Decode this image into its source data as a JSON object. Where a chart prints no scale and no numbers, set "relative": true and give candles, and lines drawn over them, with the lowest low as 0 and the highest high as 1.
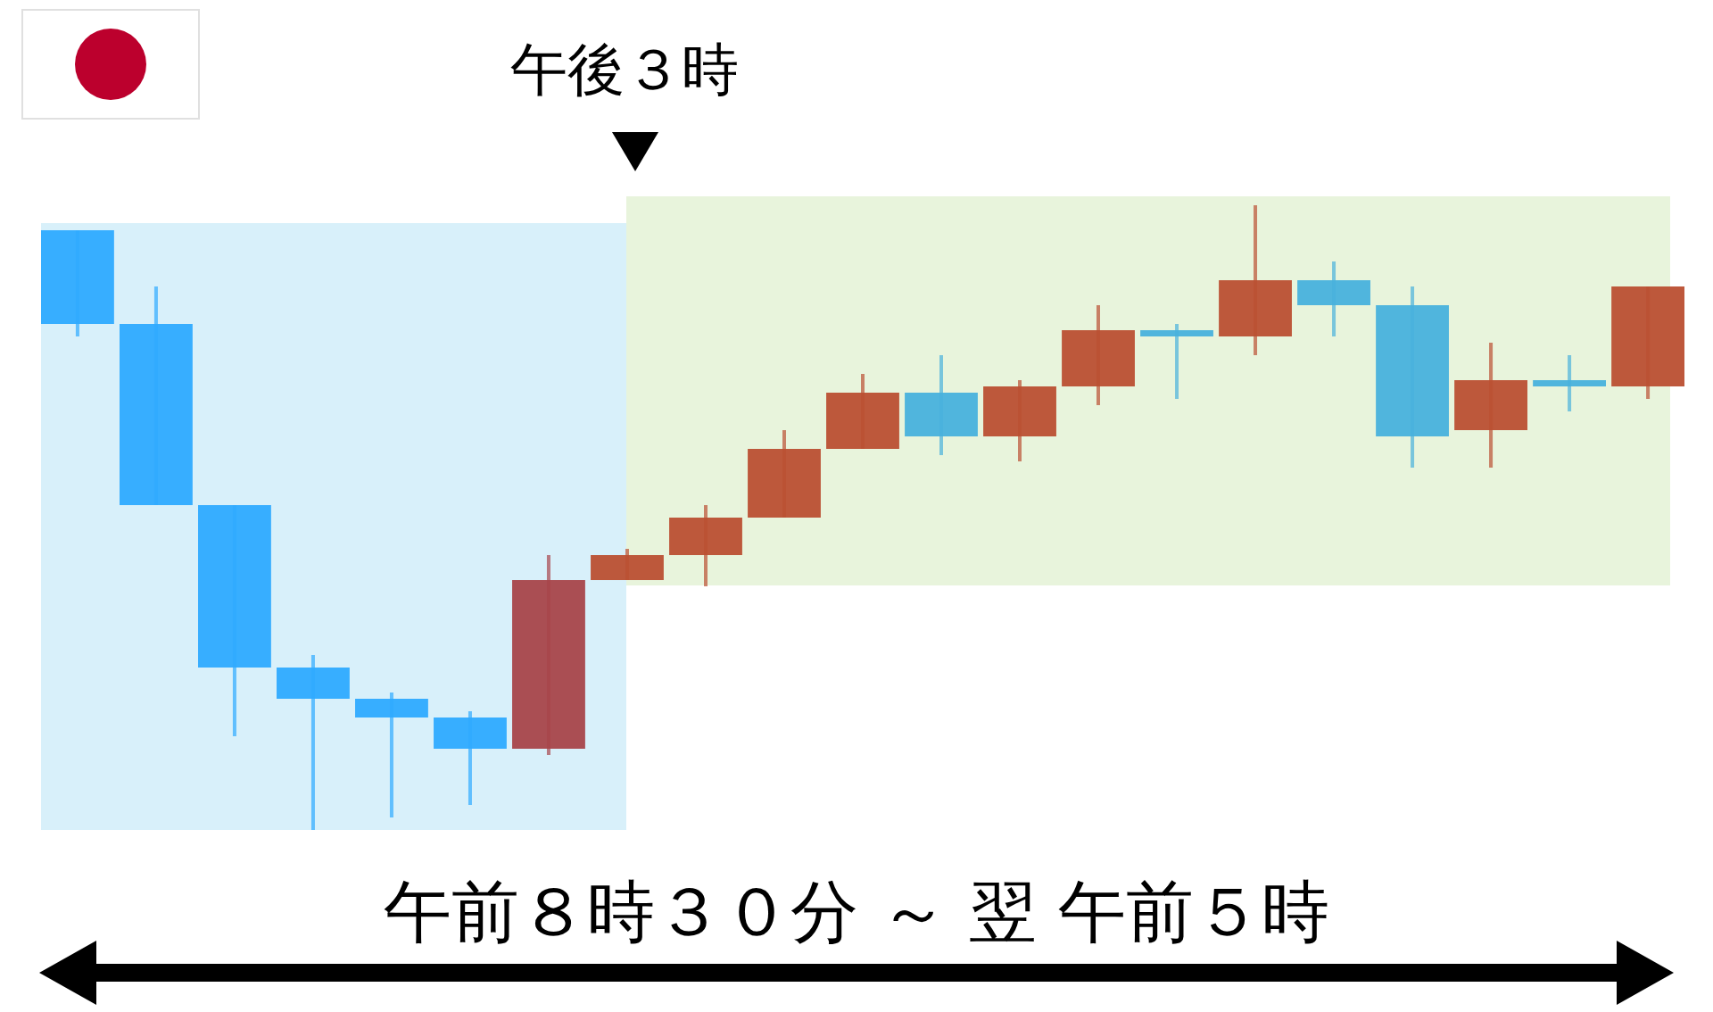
{
  "chart_data": {
    "type": "candlestick",
    "relative": true,
    "tick_labels": false,
    "categories": [
      null,
      null,
      null,
      null,
      null,
      null,
      null,
      null,
      null,
      null,
      null,
      null,
      null,
      null,
      null,
      null,
      null,
      null,
      null,
      null,
      null
    ],
    "ohlc": [
      [
        0.96,
        0.96,
        0.79,
        0.81
      ],
      [
        0.81,
        0.87,
        0.52,
        0.52
      ],
      [
        0.52,
        0.52,
        0.15,
        0.26
      ],
      [
        0.26,
        0.28,
        0,
        0.21
      ],
      [
        0.21,
        0.22,
        0.02,
        0.18
      ],
      [
        0.18,
        0.19,
        0.04,
        0.13
      ],
      [
        0.13,
        0.44,
        0.12,
        0.4
      ],
      [
        0.4,
        0.45,
        0.4,
        0.44
      ],
      [
        0.44,
        0.52,
        0.39,
        0.5
      ],
      [
        0.5,
        0.64,
        0.5,
        0.61
      ],
      [
        0.61,
        0.73,
        0.61,
        0.7
      ],
      [
        0.7,
        0.76,
        0.6,
        0.63
      ],
      [
        0.63,
        0.72,
        0.59,
        0.71
      ],
      [
        0.71,
        0.84,
        0.68,
        0.8
      ],
      [
        0.8,
        0.81,
        0.69,
        0.79
      ],
      [
        0.79,
        1,
        0.76,
        0.88
      ],
      [
        0.88,
        0.91,
        0.79,
        0.84
      ],
      [
        0.84,
        0.87,
        0.58,
        0.63
      ],
      [
        0.64,
        0.78,
        0.58,
        0.72
      ],
      [
        0.72,
        0.76,
        0.67,
        0.71
      ],
      [
        0.71,
        0.87,
        0.69,
        0.87
      ]
    ],
    "colors": [
      "#2eaaff",
      "#2eaaff",
      "#2eaaff",
      "#2eaaff",
      "#2eaaff",
      "#2eaaff",
      "#a8444a",
      "#bb4f32",
      "#bb4f32",
      "#bb4f32",
      "#bb4f32",
      "#48b1dc",
      "#bb4f32",
      "#bb4f32",
      "#48b1dc",
      "#bb4f32",
      "#48b1dc",
      "#48b1dc",
      "#bb4f32",
      "#48b1dc",
      "#bb4f32"
    ],
    "annotations": [
      "午後３時",
      "午前８時３０分 ～ 翌 午前５時"
    ]
  }
}
